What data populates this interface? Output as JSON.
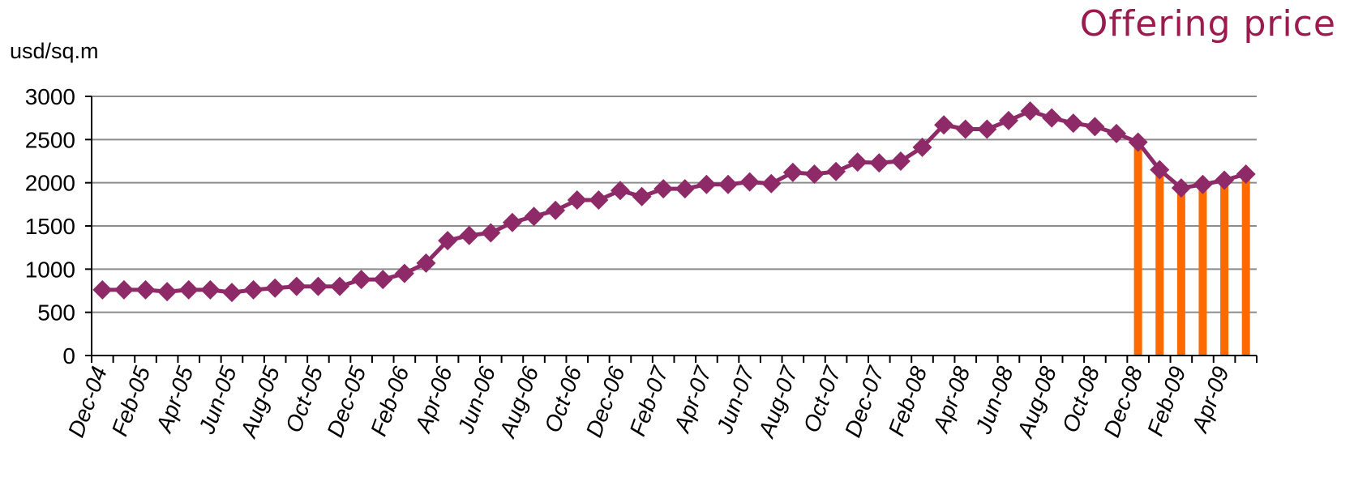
{
  "chart_data": {
    "type": "line",
    "title": "Offering price",
    "ylabel": "usd/sq.m",
    "ylim": [
      0,
      3000
    ],
    "yticks": [
      0,
      500,
      1000,
      1500,
      2000,
      2500,
      3000
    ],
    "grid": true,
    "x_tick_labels": [
      "Dec-04",
      "Feb-05",
      "Apr-05",
      "Jun-05",
      "Aug-05",
      "Oct-05",
      "Dec-05",
      "Feb-06",
      "Apr-06",
      "Jun-06",
      "Aug-06",
      "Oct-06",
      "Dec-06",
      "Feb-07",
      "Apr-07",
      "Jun-07",
      "Aug-07",
      "Oct-07",
      "Dec-07",
      "Feb-08",
      "Apr-08",
      "Jun-08",
      "Aug-08",
      "Oct-08",
      "Dec-08",
      "Feb-09",
      "Apr-09"
    ],
    "x": [
      "Dec-04",
      "Jan-05",
      "Feb-05",
      "Mar-05",
      "Apr-05",
      "May-05",
      "Jun-05",
      "Jul-05",
      "Aug-05",
      "Sep-05",
      "Oct-05",
      "Nov-05",
      "Dec-05",
      "Jan-06",
      "Feb-06",
      "Mar-06",
      "Apr-06",
      "May-06",
      "Jun-06",
      "Jul-06",
      "Aug-06",
      "Sep-06",
      "Oct-06",
      "Nov-06",
      "Dec-06",
      "Jan-07",
      "Feb-07",
      "Mar-07",
      "Apr-07",
      "May-07",
      "Jun-07",
      "Jul-07",
      "Aug-07",
      "Sep-07",
      "Oct-07",
      "Nov-07",
      "Dec-07",
      "Jan-08",
      "Feb-08",
      "Mar-08",
      "Apr-08",
      "May-08",
      "Jun-08",
      "Jul-08",
      "Aug-08",
      "Sep-08",
      "Oct-08",
      "Nov-08",
      "Dec-08",
      "Jan-09",
      "Feb-09",
      "Mar-09",
      "Apr-09",
      "May-09"
    ],
    "series": [
      {
        "type": "line",
        "color": "#8e2a67",
        "marker": "diamond",
        "values": [
          760,
          760,
          760,
          740,
          760,
          760,
          730,
          760,
          780,
          800,
          800,
          800,
          880,
          880,
          950,
          1070,
          1330,
          1390,
          1420,
          1540,
          1610,
          1680,
          1800,
          1800,
          1910,
          1840,
          1930,
          1930,
          1980,
          1980,
          2010,
          1990,
          2120,
          2100,
          2130,
          2240,
          2230,
          2250,
          2410,
          2670,
          2620,
          2620,
          2720,
          2830,
          2750,
          2690,
          2650,
          2570,
          2470,
          2150,
          1940,
          1980,
          2030,
          2100
        ]
      },
      {
        "type": "bar",
        "color": "#ff6a00",
        "x": [
          "Dec-08",
          "Jan-09",
          "Feb-09",
          "Mar-09",
          "Apr-09",
          "May-09"
        ],
        "values": [
          2470,
          2150,
          1940,
          1980,
          2030,
          2100
        ]
      }
    ]
  }
}
